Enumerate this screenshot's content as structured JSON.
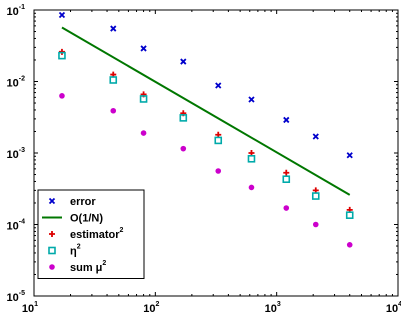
{
  "chart_data": {
    "type": "scatter",
    "xscale": "log",
    "yscale": "log",
    "xlim": [
      10,
      10000
    ],
    "ylim": [
      1e-05,
      0.1
    ],
    "grid": false,
    "legend_position": "bottom-left",
    "x_ticks": [
      {
        "value": 10,
        "base": "10",
        "exp": "1"
      },
      {
        "value": 100,
        "base": "10",
        "exp": "2"
      },
      {
        "value": 1000,
        "base": "10",
        "exp": "3"
      },
      {
        "value": 10000,
        "base": "10",
        "exp": "4"
      }
    ],
    "y_ticks": [
      {
        "value": 1e-05,
        "base": "10",
        "exp": "-5"
      },
      {
        "value": 0.0001,
        "base": "10",
        "exp": "-4"
      },
      {
        "value": 0.001,
        "base": "10",
        "exp": "-3"
      },
      {
        "value": 0.01,
        "base": "10",
        "exp": "-2"
      },
      {
        "value": 0.1,
        "base": "10",
        "exp": "-1"
      }
    ],
    "x": [
      17,
      45,
      80,
      170,
      330,
      620,
      1200,
      2100,
      4000
    ],
    "series": [
      {
        "key": "error",
        "label": "error",
        "sup": "",
        "marker": "x",
        "color": "#0000cc",
        "values": [
          0.085,
          0.055,
          0.029,
          0.019,
          0.0088,
          0.0056,
          0.0029,
          0.0017,
          0.00093
        ]
      },
      {
        "key": "fit",
        "label": "O(1/N)",
        "sup": "",
        "marker": "line",
        "color": "#007700",
        "x": [
          17,
          4000
        ],
        "values": [
          0.057,
          0.00026
        ]
      },
      {
        "key": "estimator",
        "label": "estimator",
        "sup": "2",
        "marker": "plus",
        "color": "#dd0000",
        "values": [
          0.026,
          0.0125,
          0.0066,
          0.0036,
          0.0018,
          0.001,
          0.00053,
          0.0003,
          0.00016
        ]
      },
      {
        "key": "eta",
        "label": "η",
        "sup": "2",
        "marker": "square",
        "color": "#00aaaa",
        "values": [
          0.023,
          0.0105,
          0.0057,
          0.0031,
          0.0015,
          0.00083,
          0.00043,
          0.00025,
          0.000135
        ]
      },
      {
        "key": "mu",
        "label": "sum μ",
        "sup": "2",
        "marker": "dot",
        "color": "#cc00cc",
        "values": [
          0.0063,
          0.0039,
          0.0019,
          0.00115,
          0.00056,
          0.00033,
          0.00017,
          0.0001,
          5.2e-05
        ]
      }
    ]
  }
}
